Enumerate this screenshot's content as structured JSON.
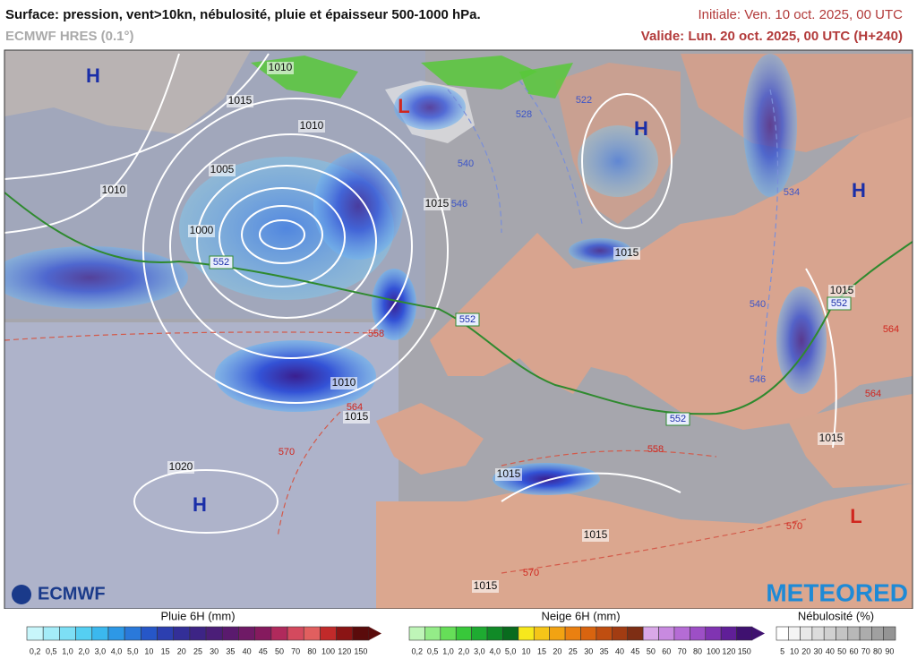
{
  "header": {
    "title": "Surface: pression, vent>10kn, nébulosité, pluie et épaisseur 500-1000 hPa.",
    "model": "ECMWF HRES (0.1°)",
    "initial": "Initiale: Ven. 10 oct. 2025, 00 UTC",
    "valid": "Valide: Lun. 20 oct. 2025, 00 UTC (H+240)"
  },
  "map": {
    "pressure_centers": [
      "H",
      "L",
      "H",
      "H",
      "H",
      "L"
    ],
    "isobar_labels": [
      "1010",
      "1015",
      "1010",
      "1005",
      "1010",
      "1000",
      "1015",
      "1015",
      "1015",
      "1010",
      "1015",
      "1020",
      "1015",
      "1015",
      "1015",
      "1015"
    ],
    "thickness_labels": [
      "552",
      "552",
      "552",
      "552",
      "540",
      "528",
      "522",
      "534",
      "540",
      "546",
      "546",
      "558",
      "564",
      "570",
      "558",
      "570",
      "570",
      "564",
      "564"
    ],
    "logos": [
      "ECMWF",
      "METEORED"
    ]
  },
  "legends": [
    {
      "title": "Pluie 6H (mm)",
      "ticks": [
        "0,2",
        "0,5",
        "1,0",
        "2,0",
        "3,0",
        "4,0",
        "5,0",
        "10",
        "15",
        "20",
        "25",
        "30",
        "35",
        "40",
        "45",
        "50",
        "70",
        "80",
        "100",
        "120",
        "150"
      ]
    },
    {
      "title": "Neige 6H (mm)",
      "ticks": [
        "0,2",
        "0,5",
        "1,0",
        "2,0",
        "3,0",
        "4,0",
        "5,0",
        "10",
        "15",
        "20",
        "25",
        "30",
        "35",
        "40",
        "45",
        "50",
        "60",
        "70",
        "80",
        "100",
        "120",
        "150"
      ]
    },
    {
      "title": "Nébulosité (%)",
      "ticks": [
        "5",
        "10",
        "20",
        "30",
        "40",
        "50",
        "60",
        "70",
        "80",
        "90"
      ]
    }
  ]
}
